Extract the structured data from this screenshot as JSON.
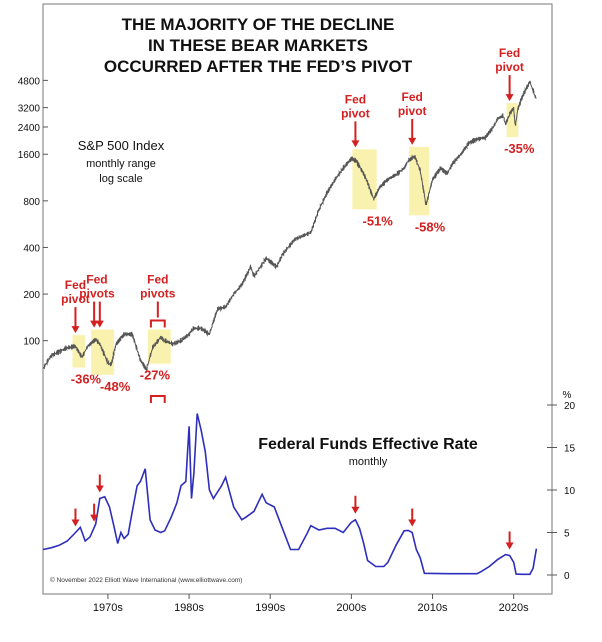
{
  "chart_data": [
    {
      "type": "line",
      "title": "THE MAJORITY OF THE DECLINE IN THESE BEAR MARKETS OCCURRED AFTER THE FED'S PIVOT",
      "title_lines": [
        "THE MAJORITY OF THE DECLINE",
        "IN THESE BEAR MARKETS",
        "OCCURRED AFTER THE FED’S PIVOT"
      ],
      "label_lines": [
        "S&P 500 Index",
        "monthly range",
        "log scale"
      ],
      "y_scale": "log",
      "ylim": [
        60,
        5600
      ],
      "y_ticks": [
        100,
        200,
        400,
        800,
        1600,
        2400,
        3200,
        4800
      ],
      "y_tick_labels": [
        "100",
        "200",
        "400",
        "800",
        "1600",
        "2400",
        "3200",
        "4800"
      ],
      "grid": false,
      "series": [
        {
          "x": [
            1962.0,
            1963.0,
            1964.0,
            1965.0,
            1966.0,
            1966.8,
            1967.5,
            1968.5,
            1969.0,
            1970.0,
            1970.4,
            1971.0,
            1972.0,
            1973.0,
            1974.0,
            1974.75,
            1975.5,
            1976.5,
            1977.0,
            1978.0,
            1979.0,
            1980.0,
            1980.5,
            1981.5,
            1982.5,
            1983.5,
            1984.5,
            1985.5,
            1986.5,
            1987.6,
            1988.0,
            1989.5,
            1990.8,
            1991.5,
            1993.0,
            1995.0,
            1996.0,
            1997.0,
            1998.0,
            1999.0,
            2000.0,
            2000.6,
            2001.5,
            2002.0,
            2002.75,
            2003.5,
            2004.5,
            2005.5,
            2006.5,
            2007.0,
            2007.8,
            2008.5,
            2009.2,
            2010.0,
            2011.0,
            2011.8,
            2012.5,
            2013.5,
            2014.5,
            2015.5,
            2016.5,
            2017.5,
            2018.0,
            2018.7,
            2019.0,
            2019.5,
            2020.0,
            2020.2,
            2020.5,
            2021.0,
            2021.5,
            2022.0,
            2022.5,
            2022.8
          ],
          "values": [
            66,
            80,
            85,
            90,
            92,
            78,
            92,
            102,
            95,
            72,
            70,
            95,
            110,
            110,
            75,
            65,
            90,
            105,
            100,
            95,
            100,
            110,
            120,
            120,
            110,
            160,
            165,
            200,
            230,
            300,
            260,
            340,
            300,
            360,
            450,
            500,
            700,
            900,
            1100,
            1300,
            1500,
            1450,
            1200,
            1050,
            820,
            980,
            1100,
            1180,
            1300,
            1450,
            1550,
            1250,
            750,
            1100,
            1300,
            1200,
            1400,
            1600,
            1900,
            2000,
            2050,
            2400,
            2700,
            2850,
            2500,
            2900,
            3200,
            2400,
            3100,
            3700,
            4200,
            4700,
            4000,
            3600
          ]
        }
      ],
      "annotations": [
        {
          "label_lines": [
            "Fed",
            "pivot"
          ],
          "x": 1966.0,
          "change": "-36%"
        },
        {
          "label_lines": [
            "Fed",
            "pivots"
          ],
          "x": [
            1968.3,
            1969.0
          ],
          "change": "-48%"
        },
        {
          "label_lines": [
            "Fed",
            "pivots"
          ],
          "x": [
            1975.3,
            1977.0
          ],
          "change": "-27%"
        },
        {
          "label_lines": [
            "Fed",
            "pivot"
          ],
          "x": 2000.5,
          "change": "-51%"
        },
        {
          "label_lines": [
            "Fed",
            "pivot"
          ],
          "x": 2007.5,
          "change": "-58%"
        },
        {
          "label_lines": [
            "Fed",
            "pivot"
          ],
          "x": 2019.5,
          "change": "-35%"
        }
      ]
    },
    {
      "type": "line",
      "title": "Federal Funds Effective Rate",
      "subtitle": "monthly",
      "unit": "%",
      "ylim": [
        0,
        20
      ],
      "y_ticks": [
        0,
        5,
        10,
        15,
        20
      ],
      "y_tick_labels": [
        "0",
        "5",
        "10",
        "15",
        "20"
      ],
      "grid": false,
      "series": [
        {
          "x": [
            1962.0,
            1963.0,
            1964.0,
            1965.0,
            1966.0,
            1966.6,
            1967.2,
            1967.8,
            1968.5,
            1969.0,
            1969.6,
            1970.2,
            1970.8,
            1971.2,
            1971.6,
            1972.0,
            1972.5,
            1973.0,
            1973.6,
            1974.0,
            1974.6,
            1975.2,
            1975.8,
            1976.5,
            1977.0,
            1977.8,
            1978.5,
            1979.0,
            1979.6,
            1980.0,
            1980.3,
            1980.6,
            1981.0,
            1981.5,
            1982.0,
            1982.5,
            1983.0,
            1984.0,
            1984.5,
            1985.5,
            1986.5,
            1987.0,
            1988.0,
            1989.0,
            1989.5,
            1990.5,
            1991.5,
            1992.5,
            1993.5,
            1994.5,
            1995.0,
            1996.0,
            1997.0,
            1998.0,
            1999.0,
            2000.0,
            2000.5,
            2001.0,
            2001.5,
            2002.0,
            2003.0,
            2004.0,
            2004.5,
            2005.5,
            2006.5,
            2007.0,
            2007.5,
            2008.0,
            2008.5,
            2009.0,
            2012.0,
            2015.5,
            2016.0,
            2017.0,
            2018.0,
            2019.0,
            2019.5,
            2020.0,
            2020.3,
            2021.0,
            2022.0,
            2022.4,
            2022.8
          ],
          "values": [
            3.0,
            3.2,
            3.5,
            4.0,
            5.0,
            5.6,
            4.0,
            4.5,
            6.0,
            9.0,
            9.2,
            8.0,
            5.5,
            3.7,
            5.0,
            4.3,
            4.8,
            7.5,
            10.5,
            11.0,
            12.5,
            6.5,
            5.3,
            5.0,
            5.2,
            6.8,
            8.5,
            10.5,
            11.0,
            17.5,
            9.0,
            12.0,
            19.0,
            17.0,
            14.5,
            10.0,
            9.0,
            10.5,
            11.5,
            8.0,
            6.5,
            6.8,
            7.5,
            9.5,
            8.5,
            8.0,
            5.5,
            3.0,
            3.0,
            4.8,
            5.8,
            5.3,
            5.5,
            5.5,
            5.0,
            6.2,
            6.5,
            5.5,
            3.8,
            1.7,
            1.0,
            1.0,
            1.5,
            3.5,
            5.2,
            5.25,
            5.0,
            3.0,
            2.0,
            0.2,
            0.15,
            0.15,
            0.4,
            1.0,
            1.8,
            2.4,
            2.3,
            1.5,
            0.1,
            0.08,
            0.08,
            0.8,
            3.1
          ]
        }
      ],
      "pivot_marker_years": [
        1966.0,
        1968.3,
        1969.0,
        2000.5,
        2007.5,
        2019.5
      ],
      "pivot_bracket": [
        1975.3,
        1977.0
      ]
    }
  ],
  "x_axis": {
    "xlim": [
      1962,
      2023
    ],
    "ticks": [
      1970,
      1980,
      1990,
      2000,
      2010,
      2020
    ],
    "tick_labels": [
      "1970s",
      "1980s",
      "1990s",
      "2000s",
      "2010s",
      "2020s"
    ]
  },
  "copyright": "© November 2022 Elliott Wave International (www.elliottwave.com)",
  "colors": {
    "price_line": "#555555",
    "rate_line": "#2e2ebd",
    "highlight": "#f7f0a0",
    "annotation": "#d42020",
    "text": "#111111"
  }
}
